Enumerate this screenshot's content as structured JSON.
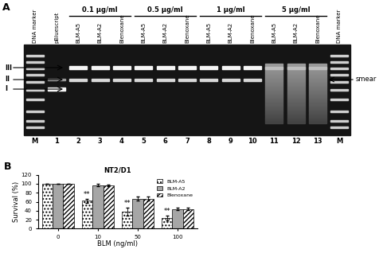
{
  "panel_labels": [
    "A",
    "B"
  ],
  "gel": {
    "lanes": [
      {
        "number": "M",
        "label": "DNA marker"
      },
      {
        "number": "1",
        "label": "pBluescript"
      },
      {
        "number": "2",
        "label": "BLM-A5"
      },
      {
        "number": "3",
        "label": "BLM-A2"
      },
      {
        "number": "4",
        "label": "Blenoxane"
      },
      {
        "number": "5",
        "label": "BLM-A5"
      },
      {
        "number": "6",
        "label": "BLM-A2"
      },
      {
        "number": "7",
        "label": "Blenoxane"
      },
      {
        "number": "8",
        "label": "BLM-A5"
      },
      {
        "number": "9",
        "label": "BLM-A2"
      },
      {
        "number": "10",
        "label": "Blenoxane"
      },
      {
        "number": "11",
        "label": "BLM-A5"
      },
      {
        "number": "12",
        "label": "BLM-A2"
      },
      {
        "number": "13",
        "label": "Blenoxane"
      },
      {
        "number": "M",
        "label": "DNA marker"
      }
    ],
    "groups": [
      {
        "label": "0.1 µg/ml",
        "lanes": [
          2,
          3,
          4
        ]
      },
      {
        "label": "0.5 µg/ml",
        "lanes": [
          5,
          6,
          7
        ]
      },
      {
        "label": "1 µg/ml",
        "lanes": [
          8,
          9,
          10
        ]
      },
      {
        "label": "5 µg/ml",
        "lanes": [
          11,
          12,
          13
        ]
      }
    ],
    "forms": [
      "III",
      "II",
      "I"
    ],
    "annotation": "smear"
  },
  "chart_data": {
    "type": "bar",
    "title": "NT2/D1",
    "x_label": "BLM (ng/ml)",
    "y_label": "Survival (%)",
    "categories": [
      "0",
      "10",
      "50",
      "100"
    ],
    "series": [
      {
        "name": "BLM-A5",
        "color": "#ffffff",
        "values": [
          100,
          62,
          38,
          24
        ],
        "errors": [
          0,
          4,
          8,
          5
        ]
      },
      {
        "name": "BLM-A2",
        "color": "#a6a6a6",
        "values": [
          100,
          97,
          67,
          44
        ],
        "errors": [
          0,
          3,
          4,
          2
        ]
      },
      {
        "name": "Blenoxane",
        "color": "#ffffff",
        "values": [
          100,
          97,
          67,
          44
        ],
        "errors": [
          0,
          2,
          4,
          3
        ]
      }
    ],
    "annotations": [
      {
        "category": "10",
        "series": "BLM-A5",
        "text": "**"
      },
      {
        "category": "50",
        "series": "BLM-A5",
        "text": "**"
      },
      {
        "category": "100",
        "series": "BLM-A5",
        "text": "**"
      }
    ],
    "ylim": [
      0,
      120
    ],
    "yticks": [
      0,
      20,
      40,
      60,
      80,
      100,
      120
    ],
    "legend": "upper right",
    "grid": false
  }
}
